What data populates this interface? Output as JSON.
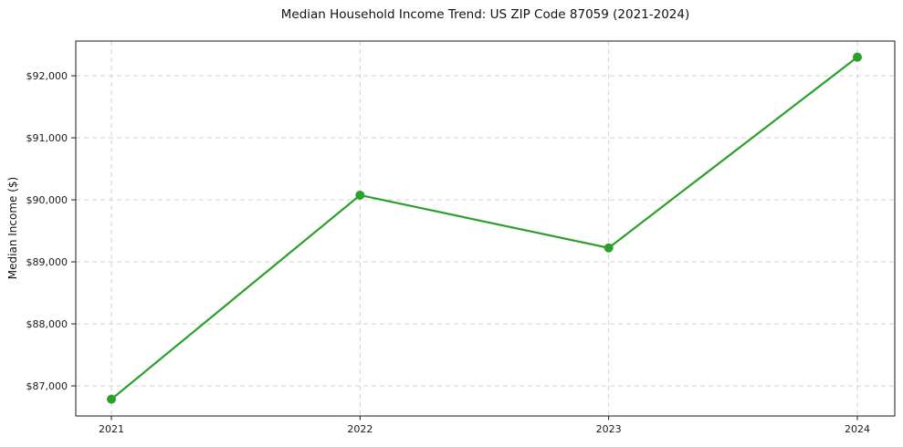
{
  "figure": {
    "background": "#ffffff"
  },
  "chart_data": {
    "type": "line",
    "title": "Median Household Income Trend: US ZIP Code 87059 (2021-2024)",
    "xlabel": "",
    "ylabel": "Median Income ($)",
    "categories": [
      "2021",
      "2022",
      "2023",
      "2024"
    ],
    "series": [
      {
        "name": "Median Household Income",
        "values": [
          86785,
          90075,
          89225,
          92300
        ]
      }
    ],
    "ylim": [
      86515,
      92560
    ],
    "yticks": [
      87000,
      88000,
      89000,
      90000,
      91000,
      92000
    ],
    "ytick_labels": [
      "$87,000",
      "$88,000",
      "$89,000",
      "$90,000",
      "$91,000",
      "$92,000"
    ],
    "xtick_labels": [
      "2021",
      "2022",
      "2023",
      "2024"
    ],
    "grid": true,
    "grid_style": "dashed",
    "legend_position": "none",
    "colors": {
      "line": "#2ca02c",
      "marker": "#2ca02c",
      "grid": "#cccccc",
      "spine": "#1a1a1a",
      "text": "#1a1a1a"
    },
    "marker_radius": 5,
    "line_width": 2.2
  }
}
